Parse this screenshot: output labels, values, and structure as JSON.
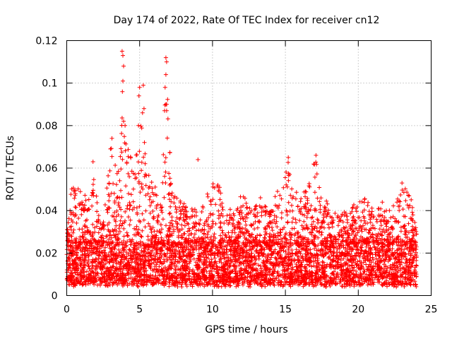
{
  "chart_data": {
    "type": "scatter",
    "title": "Day 174 of 2022, Rate Of TEC Index for receiver cn12",
    "xlabel": "GPS time / hours",
    "ylabel": "ROTI / TECUs",
    "xlim": [
      0,
      25
    ],
    "ylim": [
      0,
      0.12
    ],
    "xticks": [
      0,
      5,
      10,
      15,
      20,
      25
    ],
    "yticks": [
      0,
      0.02,
      0.04,
      0.06,
      0.08,
      0.1,
      0.12
    ],
    "xtick_labels": [
      "0",
      "5",
      "10",
      "15",
      "20",
      "25"
    ],
    "ytick_labels": [
      "0",
      "0.02",
      "0.04",
      "0.06",
      "0.08",
      "0.1",
      "0.12"
    ],
    "grid": true,
    "marker": "+",
    "color": "#ff0000",
    "series": [
      {
        "name": "ROTI",
        "x_range": [
          0,
          24
        ],
        "baseline": [
          0.005,
          0.025
        ],
        "envelope": [
          [
            0.0,
            0.03
          ],
          [
            0.3,
            0.052
          ],
          [
            0.6,
            0.05
          ],
          [
            1.0,
            0.052
          ],
          [
            1.5,
            0.045
          ],
          [
            1.8,
            0.062
          ],
          [
            2.2,
            0.04
          ],
          [
            2.5,
            0.035
          ],
          [
            3.0,
            0.073
          ],
          [
            3.5,
            0.058
          ],
          [
            3.9,
            0.115
          ],
          [
            4.3,
            0.065
          ],
          [
            4.8,
            0.07
          ],
          [
            5.1,
            0.098
          ],
          [
            5.5,
            0.06
          ],
          [
            6.0,
            0.052
          ],
          [
            6.5,
            0.048
          ],
          [
            6.8,
            0.112
          ],
          [
            7.2,
            0.05
          ],
          [
            7.8,
            0.045
          ],
          [
            8.3,
            0.042
          ],
          [
            9.0,
            0.04
          ],
          [
            9.5,
            0.048
          ],
          [
            10.3,
            0.055
          ],
          [
            10.8,
            0.045
          ],
          [
            11.5,
            0.04
          ],
          [
            12.0,
            0.048
          ],
          [
            12.8,
            0.043
          ],
          [
            13.4,
            0.047
          ],
          [
            14.0,
            0.042
          ],
          [
            14.5,
            0.05
          ],
          [
            15.2,
            0.065
          ],
          [
            15.8,
            0.048
          ],
          [
            16.5,
            0.052
          ],
          [
            17.0,
            0.066
          ],
          [
            17.6,
            0.047
          ],
          [
            18.2,
            0.04
          ],
          [
            18.8,
            0.042
          ],
          [
            19.4,
            0.04
          ],
          [
            20.1,
            0.048
          ],
          [
            20.8,
            0.044
          ],
          [
            21.4,
            0.048
          ],
          [
            22.0,
            0.04
          ],
          [
            22.6,
            0.044
          ],
          [
            23.1,
            0.053
          ],
          [
            23.6,
            0.047
          ],
          [
            24.0,
            0.03
          ]
        ],
        "outliers": [
          [
            3.8,
            0.115
          ],
          [
            3.85,
            0.113
          ],
          [
            3.9,
            0.108
          ],
          [
            3.85,
            0.101
          ],
          [
            3.82,
            0.096
          ],
          [
            5.0,
            0.098
          ],
          [
            5.25,
            0.099
          ],
          [
            4.95,
            0.094
          ],
          [
            5.3,
            0.088
          ],
          [
            5.2,
            0.086
          ],
          [
            6.8,
            0.112
          ],
          [
            6.85,
            0.11
          ],
          [
            6.8,
            0.104
          ],
          [
            6.75,
            0.098
          ],
          [
            6.8,
            0.09
          ],
          [
            6.85,
            0.087
          ],
          [
            3.1,
            0.074
          ],
          [
            3.0,
            0.069
          ],
          [
            3.9,
            0.082
          ],
          [
            4.0,
            0.08
          ],
          [
            9.0,
            0.064
          ],
          [
            15.2,
            0.065
          ],
          [
            17.1,
            0.066
          ],
          [
            1.8,
            0.063
          ],
          [
            23.0,
            0.053
          ]
        ]
      }
    ]
  }
}
